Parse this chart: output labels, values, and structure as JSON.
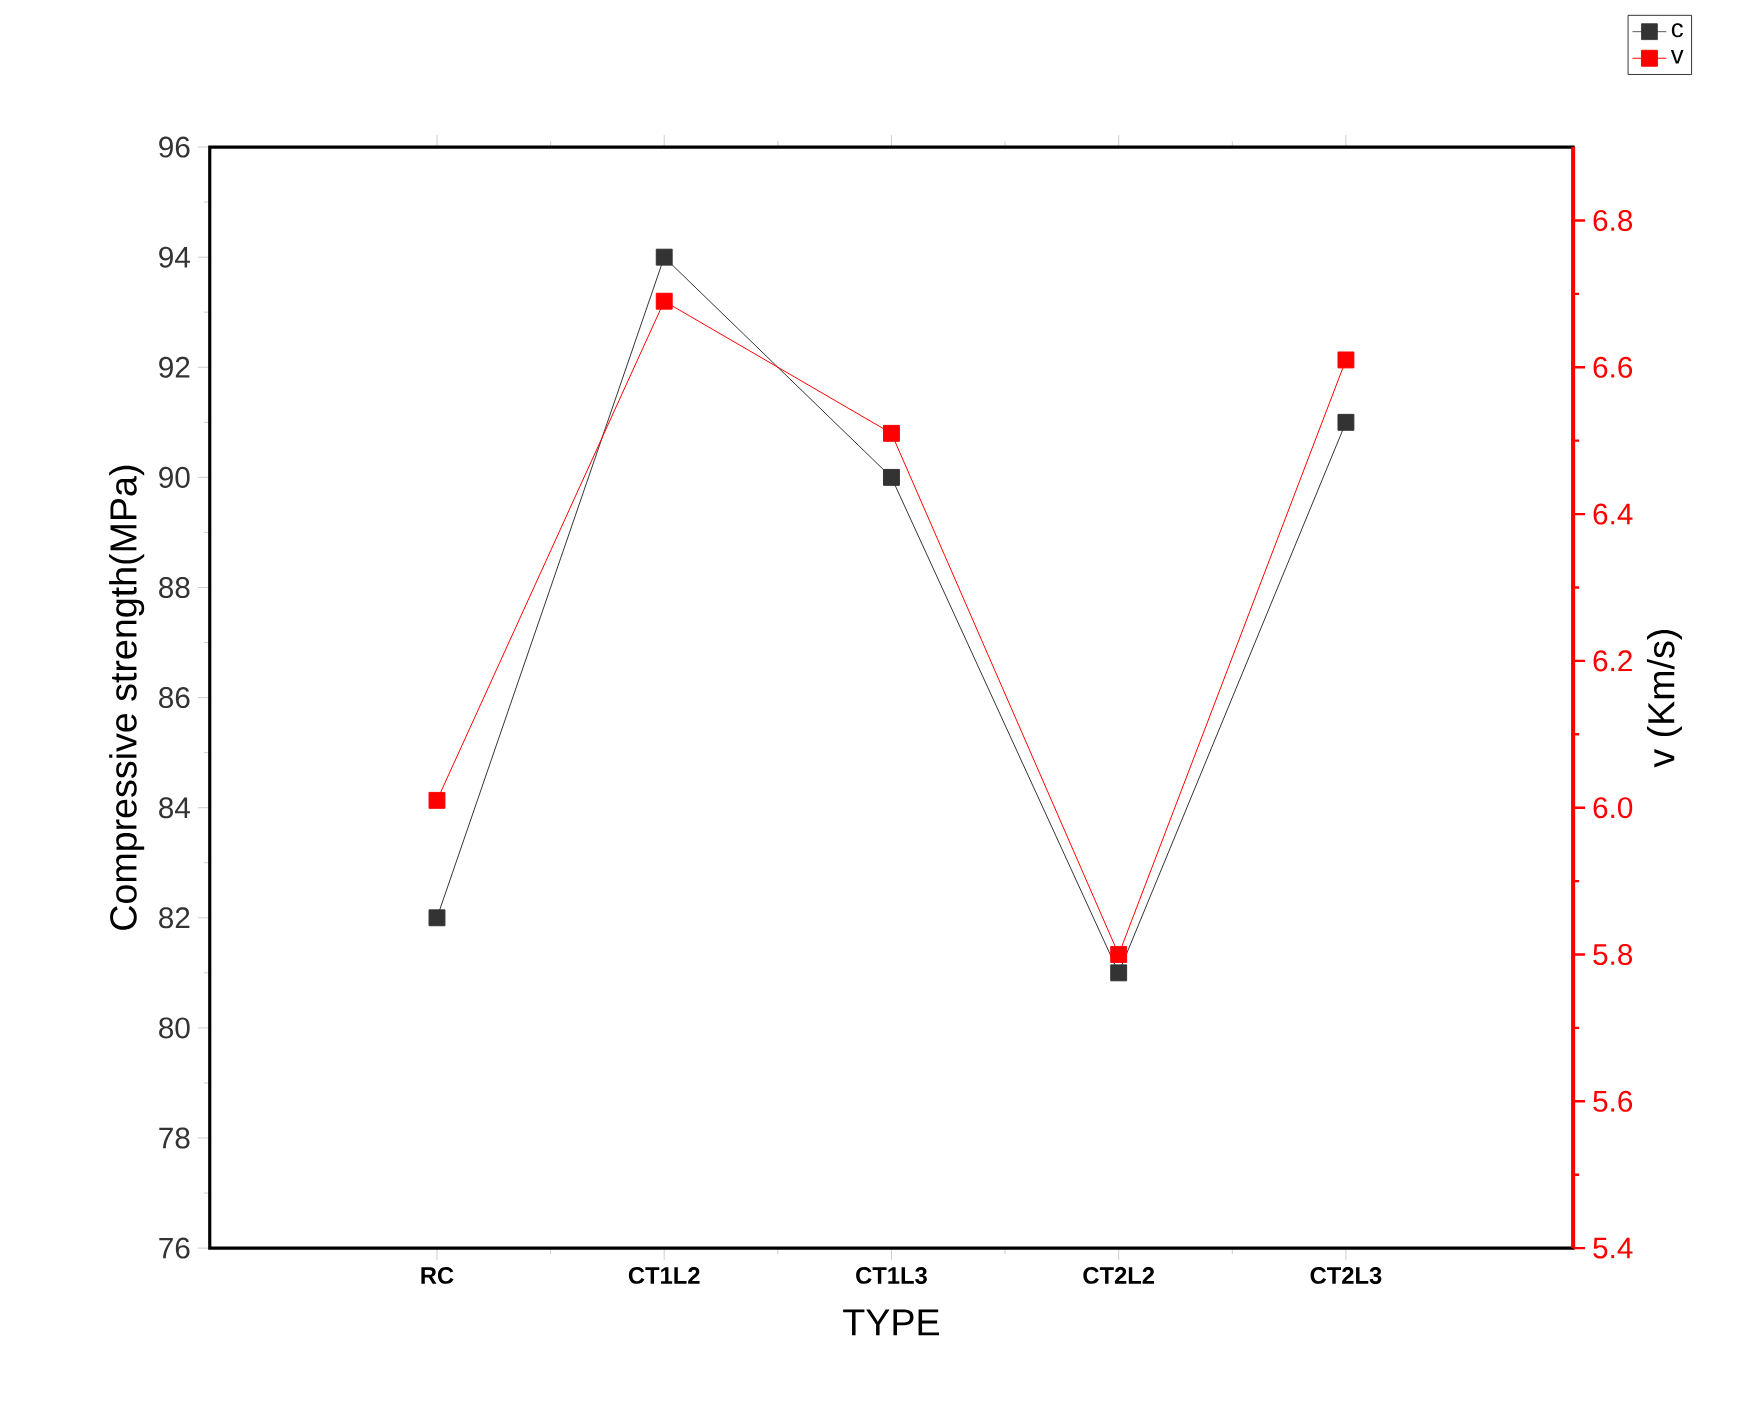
{
  "chart_data": {
    "type": "line",
    "xlabel": "TYPE",
    "ylabel": "Compressive strength(MPa)",
    "y2label": "v (Km/s)",
    "categories": [
      "RC",
      "CT1L2",
      "CT1L3",
      "CT2L2",
      "CT2L3"
    ],
    "series": [
      {
        "name": "c",
        "color": "#333333",
        "values": [
          82,
          94,
          90,
          81,
          91
        ]
      },
      {
        "name": "v",
        "color": "#ff0000",
        "values": [
          6.01,
          6.69,
          6.51,
          5.8,
          6.61
        ],
        "axis": "y2"
      }
    ],
    "ylim": [
      76,
      96
    ],
    "yticks": [
      76,
      78,
      80,
      82,
      84,
      86,
      88,
      90,
      92,
      94,
      96
    ],
    "y2lim": [
      5.4,
      6.9
    ],
    "y2ticks": [
      {
        "value": 5.4,
        "label": "5.4"
      },
      {
        "value": 5.6,
        "label": "5.6"
      },
      {
        "value": 5.8,
        "label": "5.8"
      },
      {
        "value": 6.0,
        "label": "6.0"
      },
      {
        "value": 6.2,
        "label": "6.2"
      },
      {
        "value": 6.4,
        "label": "6.4"
      },
      {
        "value": 6.6,
        "label": "6.6"
      },
      {
        "value": 6.8,
        "label": "6.8"
      }
    ],
    "marker": "square",
    "legend": "top right",
    "grid": false
  }
}
